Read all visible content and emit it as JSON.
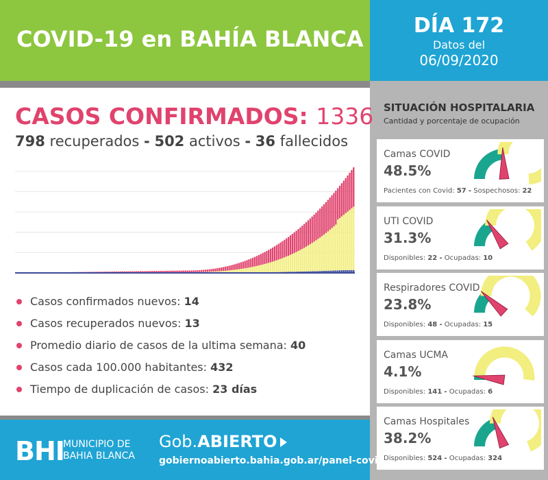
{
  "header": {
    "title": "COVID-19 en BAHÍA BLANCA",
    "day": "DÍA 172",
    "day_sub": "Datos del",
    "date": "06/09/2020"
  },
  "cases": {
    "title_label": "CASOS CONFIRMADOS:",
    "total": "1336",
    "recovered_num": "798",
    "recovered_label": "recuperados",
    "sep1": "-",
    "active_num": "502",
    "active_label": "activos",
    "sep2": "-",
    "deaths_num": "36",
    "deaths_label": "fallecidos"
  },
  "chart_data": {
    "type": "bar",
    "stacked": true,
    "series_colors": [
      "#3c4a9a",
      "#f2ee7f",
      "#e0436d"
    ],
    "days": 172,
    "legend": "none",
    "grid": true
  },
  "bullets": [
    {
      "label": "Casos confirmados nuevos:",
      "value": "14"
    },
    {
      "label": "Casos recuperados nuevos:",
      "value": "13"
    },
    {
      "label": "Promedio diario de casos de la ultima semana:",
      "value": "40"
    },
    {
      "label": "Casos cada 100.000 habitantes:",
      "value": "432"
    },
    {
      "label": "Tiempo de duplicación de casos:",
      "value": "23 días"
    }
  ],
  "footer": {
    "logo": "BHI",
    "muni_line1": "MUNICIPIO DE",
    "muni_line2": "BAHIA BLANCA",
    "gob_prefix": "Gob.",
    "gob_bold": "ABIERTO",
    "url": "gobiernoabierto.bahia.gob.ar/panel-covid"
  },
  "hospital": {
    "title": "SITUACIÓN HOSPITALARIA",
    "subtitle": "Cantidad y porcentaje de ocupación",
    "cards": [
      {
        "label": "Camas COVID",
        "pct": "48.5%",
        "value": 0.485,
        "k1": "Pacientes con Covid:",
        "v1": "57",
        "sep": "-",
        "k2": "Sospechosos:",
        "v2": "22"
      },
      {
        "label": "UTI COVID",
        "pct": "31.3%",
        "value": 0.313,
        "k1": "Disponibles:",
        "v1": "22",
        "sep": "-",
        "k2": "Ocupadas:",
        "v2": "10"
      },
      {
        "label": "Respiradores COVID",
        "pct": "23.8%",
        "value": 0.238,
        "k1": "Disponibles:",
        "v1": "48",
        "sep": "-",
        "k2": "Ocupadas:",
        "v2": "15"
      },
      {
        "label": "Camas UCMA",
        "pct": "4.1%",
        "value": 0.041,
        "k1": "Disponibles:",
        "v1": "141",
        "sep": "-",
        "k2": "Ocupadas:",
        "v2": "6"
      },
      {
        "label": "Camas Hospitales",
        "pct": "38.2%",
        "value": 0.382,
        "k1": "Disponibles:",
        "v1": "524",
        "sep": "-",
        "k2": "Ocupadas:",
        "v2": "324"
      }
    ]
  },
  "colors": {
    "green": "#8dc63f",
    "blue": "#1fa4d4",
    "pink": "#e0436d",
    "teal": "#1aa58f",
    "yellow": "#f2ee7f"
  }
}
